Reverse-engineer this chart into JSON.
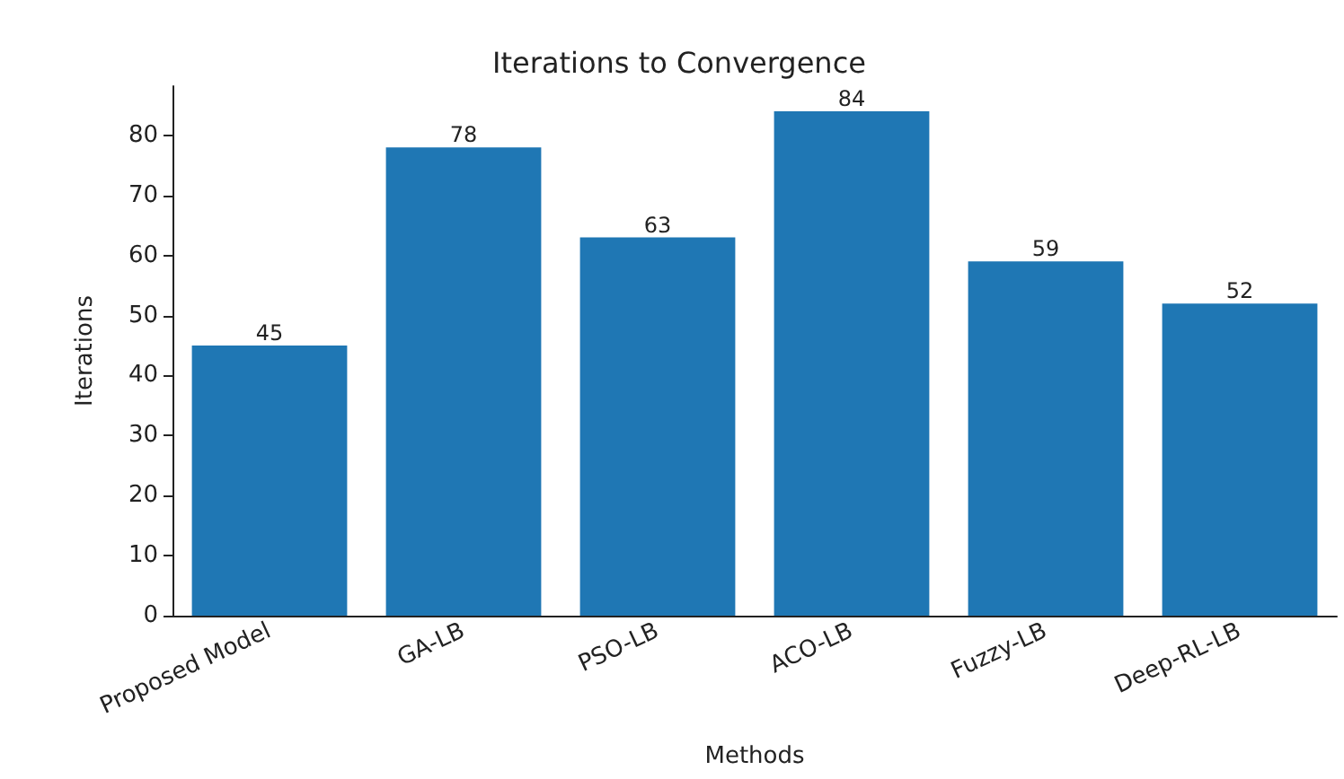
{
  "chart_data": {
    "type": "bar",
    "title": "Iterations to Convergence",
    "xlabel": "Methods",
    "ylabel": "Iterations",
    "categories": [
      "Proposed Model",
      "GA-LB",
      "PSO-LB",
      "ACO-LB",
      "Fuzzy-LB",
      "Deep-RL-LB"
    ],
    "values": [
      45,
      78,
      63,
      84,
      59,
      52
    ],
    "color": "#1f77b4",
    "ylim": [
      0,
      88.2
    ],
    "yticks": [
      0,
      10,
      20,
      30,
      40,
      50,
      60,
      70,
      80
    ],
    "grid": false,
    "data_labels": true
  }
}
